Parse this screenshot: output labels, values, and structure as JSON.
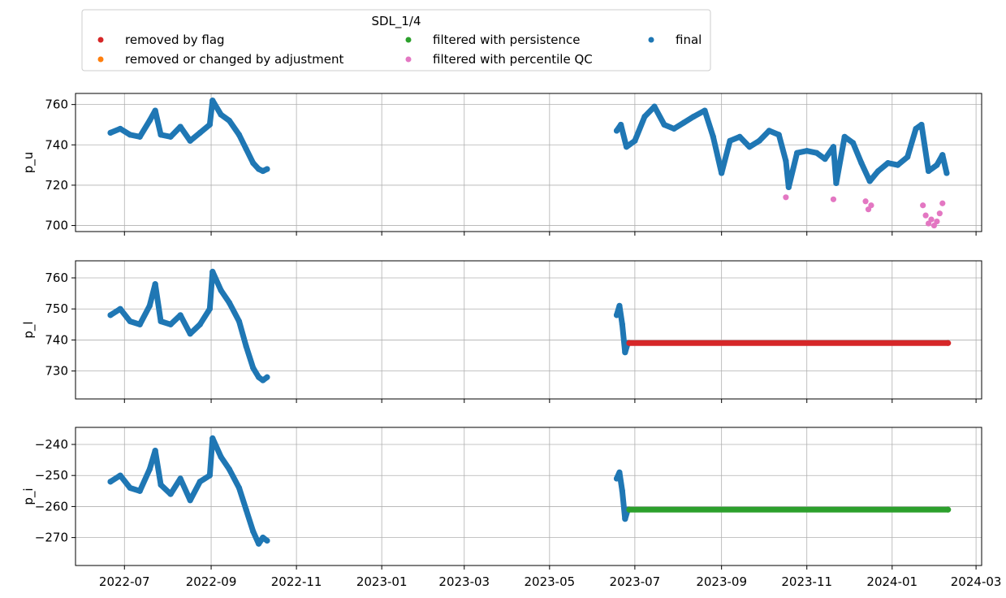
{
  "legend": {
    "title": "SDL_1/4",
    "entries": [
      {
        "label": "removed by flag",
        "color": "#d62728"
      },
      {
        "label": "removed or changed by adjustment",
        "color": "#ff7f0e"
      },
      {
        "label": "filtered with persistence",
        "color": "#2ca02c"
      },
      {
        "label": "filtered with percentile QC",
        "color": "#e377c2"
      },
      {
        "label": "final",
        "color": "#1f77b4"
      }
    ]
  },
  "chart_data": [
    {
      "type": "scatter",
      "ylabel": "p_u",
      "ylim": [
        697,
        765.5
      ],
      "yticks": [
        700,
        720,
        740,
        760
      ],
      "ytick_labels": [
        "700",
        "720",
        "740",
        "760"
      ],
      "xlim": [
        "2022-05-27",
        "2024-03-05"
      ],
      "xticks": [
        "2022-07-01",
        "2022-09-01",
        "2022-11-01",
        "2023-01-01",
        "2023-03-01",
        "2023-05-01",
        "2023-07-01",
        "2023-09-01",
        "2023-11-01",
        "2024-01-01",
        "2024-03-01"
      ],
      "grid": true,
      "series": [
        {
          "name": "final",
          "color": "#1f77b4",
          "x": [
            "2022-06-21",
            "2022-06-28",
            "2022-07-05",
            "2022-07-12",
            "2022-07-19",
            "2022-07-23",
            "2022-07-27",
            "2022-08-03",
            "2022-08-10",
            "2022-08-17",
            "2022-08-24",
            "2022-08-31",
            "2022-09-02",
            "2022-09-08",
            "2022-09-14",
            "2022-09-21",
            "2022-09-26",
            "2022-10-01",
            "2022-10-05",
            "2022-10-08",
            "2022-10-11",
            "2023-06-18",
            "2023-06-21",
            "2023-06-25",
            "2023-07-01",
            "2023-07-08",
            "2023-07-15",
            "2023-07-22",
            "2023-07-29",
            "2023-08-05",
            "2023-08-12",
            "2023-08-20",
            "2023-08-26",
            "2023-09-01",
            "2023-09-07",
            "2023-09-14",
            "2023-09-21",
            "2023-09-28",
            "2023-10-05",
            "2023-10-12",
            "2023-10-17",
            "2023-10-19",
            "2023-10-25",
            "2023-11-01",
            "2023-11-08",
            "2023-11-14",
            "2023-11-20",
            "2023-11-22",
            "2023-11-28",
            "2023-12-04",
            "2023-12-10",
            "2023-12-16",
            "2023-12-22",
            "2023-12-29",
            "2024-01-05",
            "2024-01-12",
            "2024-01-18",
            "2024-01-22",
            "2024-01-27",
            "2024-02-02",
            "2024-02-06",
            "2024-02-09"
          ],
          "y": [
            746,
            748,
            745,
            744,
            752,
            757,
            745,
            744,
            749,
            742,
            746,
            750,
            762,
            755,
            752,
            745,
            738,
            731,
            728,
            727,
            728,
            747,
            750,
            739,
            742,
            754,
            759,
            750,
            748,
            751,
            754,
            757,
            744,
            726,
            742,
            744,
            739,
            742,
            747,
            745,
            732,
            719,
            736,
            737,
            736,
            733,
            739,
            721,
            744,
            741,
            731,
            722,
            727,
            731,
            730,
            734,
            748,
            750,
            727,
            730,
            735,
            726
          ]
        },
        {
          "name": "filtered with percentile QC",
          "color": "#e377c2",
          "x": [
            "2023-10-17",
            "2023-11-20",
            "2023-12-13",
            "2023-12-15",
            "2023-12-17",
            "2024-01-23",
            "2024-01-25",
            "2024-01-27",
            "2024-01-29",
            "2024-01-31",
            "2024-02-02",
            "2024-02-04",
            "2024-02-06"
          ],
          "y": [
            714,
            713,
            712,
            708,
            710,
            710,
            705,
            701,
            703,
            700,
            702,
            706,
            711
          ]
        }
      ]
    },
    {
      "type": "scatter",
      "ylabel": "p_l",
      "ylim": [
        721,
        765.5
      ],
      "yticks": [
        730,
        740,
        750,
        760
      ],
      "ytick_labels": [
        "730",
        "740",
        "750",
        "760"
      ],
      "xlim": [
        "2022-05-27",
        "2024-03-05"
      ],
      "xticks": [
        "2022-07-01",
        "2022-09-01",
        "2022-11-01",
        "2023-01-01",
        "2023-03-01",
        "2023-05-01",
        "2023-07-01",
        "2023-09-01",
        "2023-11-01",
        "2024-01-01",
        "2024-03-01"
      ],
      "grid": true,
      "series": [
        {
          "name": "final",
          "color": "#1f77b4",
          "x": [
            "2022-06-21",
            "2022-06-28",
            "2022-07-05",
            "2022-07-12",
            "2022-07-19",
            "2022-07-23",
            "2022-07-27",
            "2022-08-03",
            "2022-08-10",
            "2022-08-17",
            "2022-08-24",
            "2022-08-31",
            "2022-09-02",
            "2022-09-08",
            "2022-09-14",
            "2022-09-21",
            "2022-09-26",
            "2022-10-01",
            "2022-10-05",
            "2022-10-08",
            "2022-10-11",
            "2023-06-18",
            "2023-06-20",
            "2023-06-22",
            "2023-06-24",
            "2023-06-26"
          ],
          "y": [
            748,
            750,
            746,
            745,
            751,
            758,
            746,
            745,
            748,
            742,
            745,
            750,
            762,
            756,
            752,
            746,
            738,
            731,
            728,
            727,
            728,
            748,
            751,
            745,
            736,
            739
          ]
        },
        {
          "name": "removed by flag",
          "color": "#d62728",
          "x": [
            "2023-06-27",
            "2024-02-10"
          ],
          "y": [
            739,
            739
          ]
        }
      ]
    },
    {
      "type": "scatter",
      "ylabel": "p_i",
      "ylim": [
        -279,
        -234.5
      ],
      "yticks": [
        -270,
        -260,
        -250,
        -240
      ],
      "ytick_labels": [
        "−270",
        "−260",
        "−250",
        "−240"
      ],
      "xlim": [
        "2022-05-27",
        "2024-03-05"
      ],
      "xticks": [
        "2022-07-01",
        "2022-09-01",
        "2022-11-01",
        "2023-01-01",
        "2023-03-01",
        "2023-05-01",
        "2023-07-01",
        "2023-09-01",
        "2023-11-01",
        "2024-01-01",
        "2024-03-01"
      ],
      "xtick_labels": [
        "2022-07",
        "2022-09",
        "2022-11",
        "2023-01",
        "2023-03",
        "2023-05",
        "2023-07",
        "2023-09",
        "2023-11",
        "2024-01",
        "2024-03"
      ],
      "grid": true,
      "series": [
        {
          "name": "final",
          "color": "#1f77b4",
          "x": [
            "2022-06-21",
            "2022-06-28",
            "2022-07-05",
            "2022-07-12",
            "2022-07-19",
            "2022-07-23",
            "2022-07-27",
            "2022-08-03",
            "2022-08-10",
            "2022-08-17",
            "2022-08-24",
            "2022-08-31",
            "2022-09-02",
            "2022-09-08",
            "2022-09-14",
            "2022-09-21",
            "2022-09-26",
            "2022-10-01",
            "2022-10-05",
            "2022-10-08",
            "2022-10-11",
            "2023-06-18",
            "2023-06-20",
            "2023-06-22",
            "2023-06-24",
            "2023-06-26"
          ],
          "y": [
            -252,
            -250,
            -254,
            -255,
            -248,
            -242,
            -253,
            -256,
            -251,
            -258,
            -252,
            -250,
            -238,
            -244,
            -248,
            -254,
            -261,
            -268,
            -272,
            -270,
            -271,
            -251,
            -249,
            -255,
            -264,
            -261
          ]
        },
        {
          "name": "filtered with persistence",
          "color": "#2ca02c",
          "x": [
            "2023-06-27",
            "2024-02-10"
          ],
          "y": [
            -261,
            -261
          ]
        }
      ]
    }
  ]
}
